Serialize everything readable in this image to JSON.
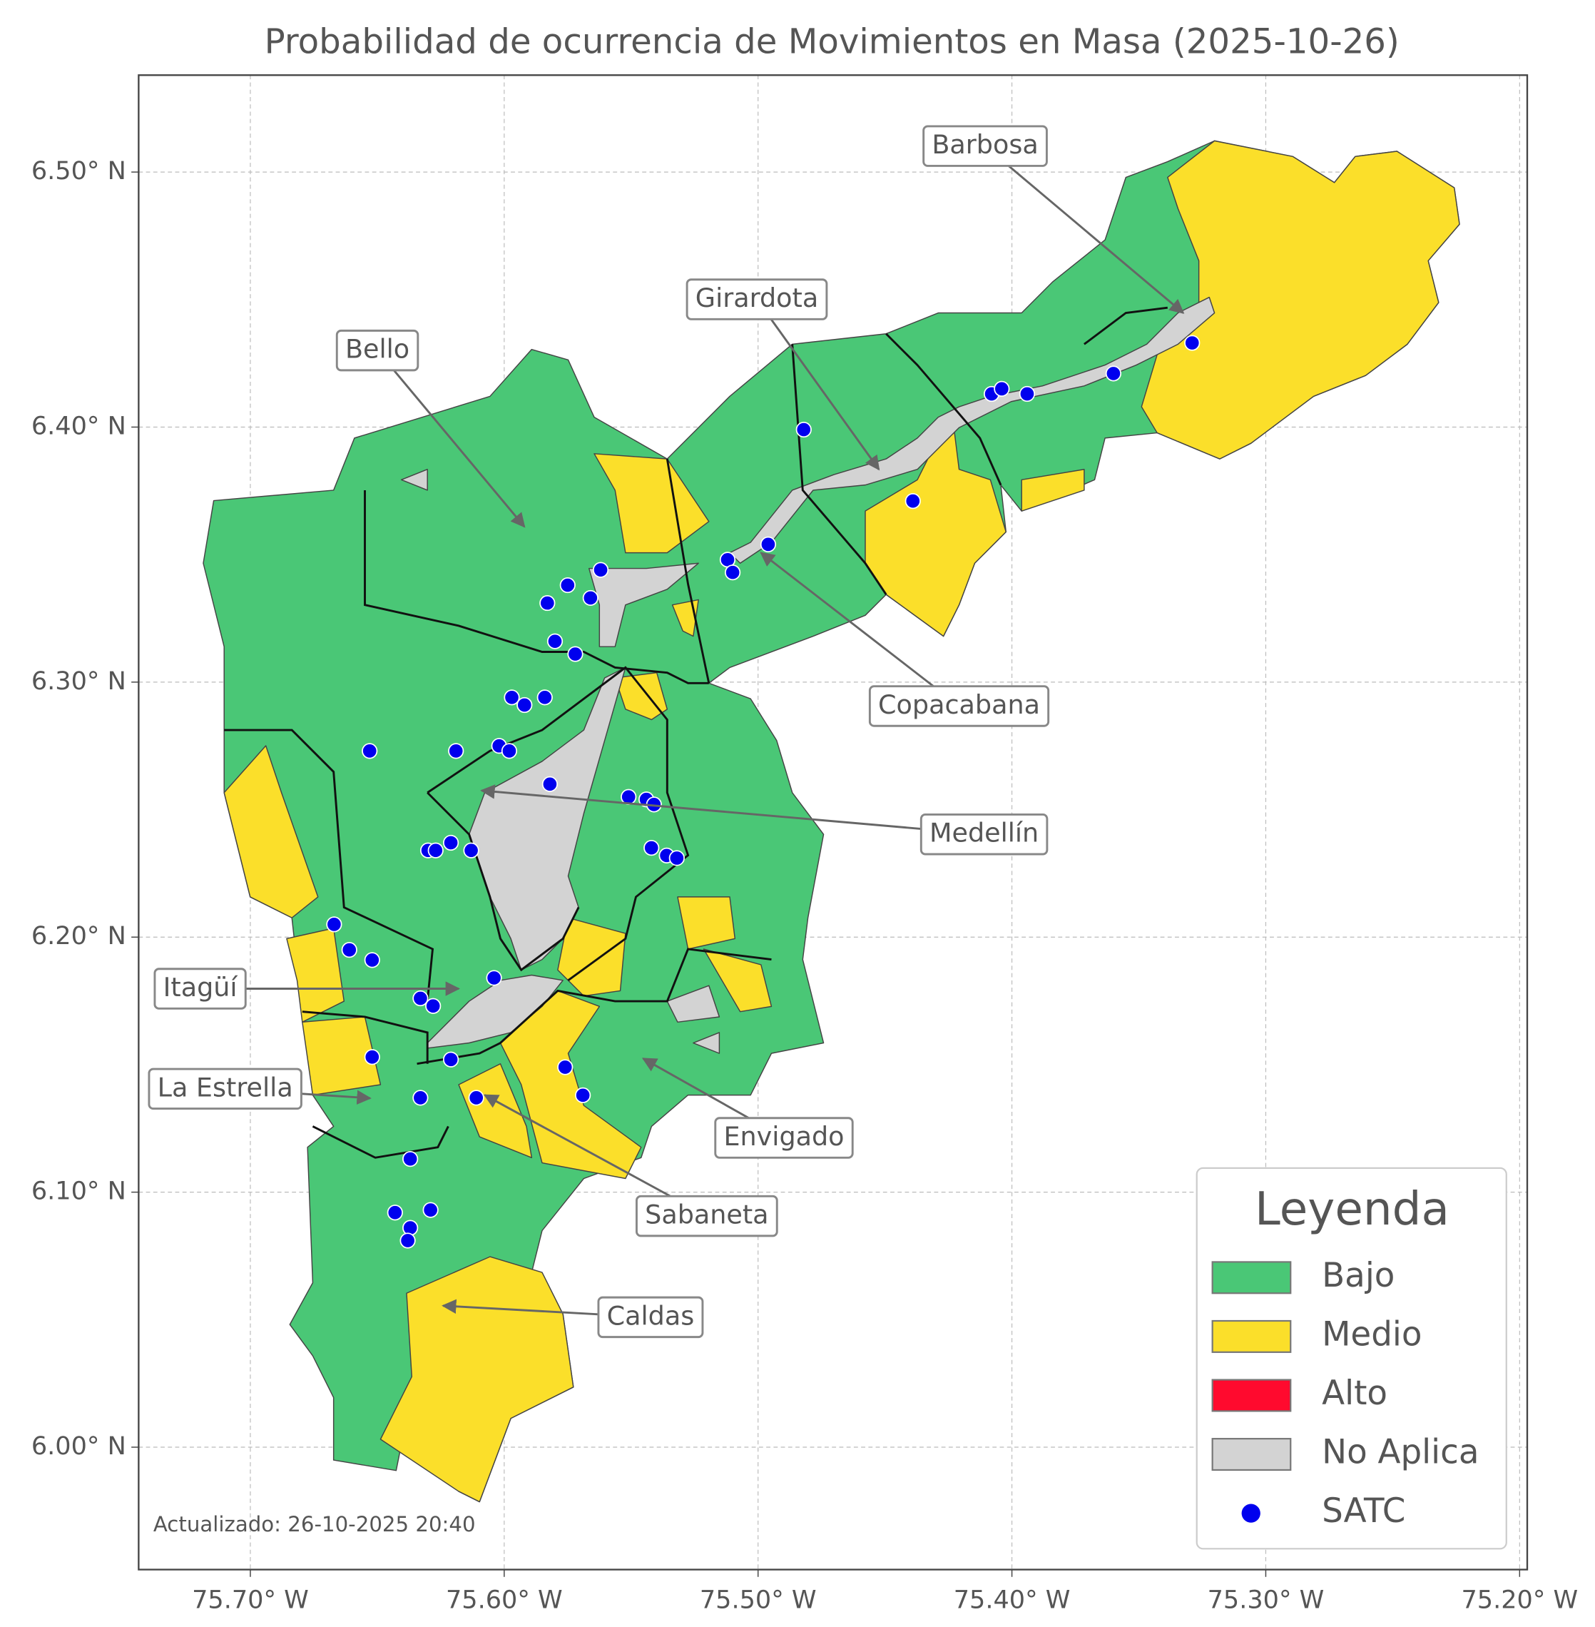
{
  "title": "Probabilidad de ocurrencia de Movimientos en Masa (2025-10-26)",
  "xlim": [
    -75.744,
    -75.197
  ],
  "ylim": [
    5.952,
    6.538
  ],
  "xticks": [
    {
      "value": -75.7,
      "label": "75.70° W"
    },
    {
      "value": -75.6,
      "label": "75.60° W"
    },
    {
      "value": -75.5,
      "label": "75.50° W"
    },
    {
      "value": -75.4,
      "label": "75.40° W"
    },
    {
      "value": -75.3,
      "label": "75.30° W"
    },
    {
      "value": -75.2,
      "label": "75.20° W"
    }
  ],
  "yticks": [
    {
      "value": 6.0,
      "label": "6.00° N"
    },
    {
      "value": 6.1,
      "label": "6.10° N"
    },
    {
      "value": 6.2,
      "label": "6.20° N"
    },
    {
      "value": 6.3,
      "label": "6.30° N"
    },
    {
      "value": 6.4,
      "label": "6.40° N"
    },
    {
      "value": 6.5,
      "label": "6.50° N"
    }
  ],
  "grid": true,
  "legend": {
    "title": "Leyenda",
    "position": "lower right",
    "items": [
      {
        "label": "Bajo",
        "color": "#4ac776"
      },
      {
        "label": "Medio",
        "color": "#fbdf2a"
      },
      {
        "label": "Alto",
        "color": "#ff0a2e"
      },
      {
        "label": "No Aplica",
        "color": "#d3d3d3"
      },
      {
        "label": "SATC",
        "color": "#0000ee"
      }
    ]
  },
  "annotations": [
    "Barbosa",
    "Girardota",
    "Bello",
    "Copacabana",
    "Medellín",
    "Itagüí",
    "La Estrella",
    "Envigado",
    "Sabaneta",
    "Caldas"
  ],
  "stations": {
    "lon": [
      -75.482,
      -75.439,
      -75.408,
      -75.404,
      -75.394,
      -75.36,
      -75.329,
      -75.496,
      -75.512,
      -75.51,
      -75.562,
      -75.575,
      -75.566,
      -75.583,
      -75.58,
      -75.572,
      -75.597,
      -75.584,
      -75.592,
      -75.653,
      -75.619,
      -75.602,
      -75.598,
      -75.582,
      -75.551,
      -75.544,
      -75.541,
      -75.542,
      -75.536,
      -75.532,
      -75.63,
      -75.627,
      -75.621,
      -75.613,
      -75.667,
      -75.661,
      -75.652,
      -75.604,
      -75.633,
      -75.628,
      -75.621,
      -75.652,
      -75.576,
      -75.569,
      -75.611,
      -75.633,
      -75.637,
      -75.643,
      -75.629,
      -75.637,
      -75.638
    ],
    "lat": [
      6.399,
      6.371,
      6.413,
      6.415,
      6.413,
      6.421,
      6.433,
      6.354,
      6.348,
      6.343,
      6.344,
      6.338,
      6.333,
      6.331,
      6.316,
      6.311,
      6.294,
      6.294,
      6.291,
      6.273,
      6.273,
      6.275,
      6.273,
      6.26,
      6.255,
      6.254,
      6.252,
      6.235,
      6.232,
      6.231,
      6.234,
      6.234,
      6.237,
      6.234,
      6.205,
      6.195,
      6.191,
      6.184,
      6.176,
      6.173,
      6.152,
      6.153,
      6.149,
      6.138,
      6.137,
      6.137,
      6.113,
      6.092,
      6.093,
      6.086,
      6.081
    ]
  },
  "footnote": "Actualizado: 26-10-2025 20:40"
}
